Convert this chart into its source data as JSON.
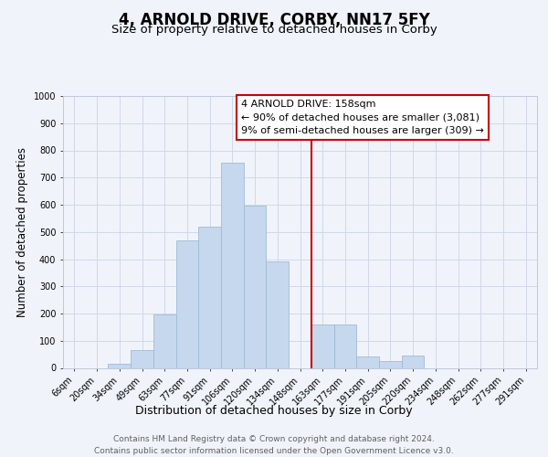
{
  "title": "4, ARNOLD DRIVE, CORBY, NN17 5FY",
  "subtitle": "Size of property relative to detached houses in Corby",
  "xlabel": "Distribution of detached houses by size in Corby",
  "ylabel": "Number of detached properties",
  "bar_labels": [
    "6sqm",
    "20sqm",
    "34sqm",
    "49sqm",
    "63sqm",
    "77sqm",
    "91sqm",
    "106sqm",
    "120sqm",
    "134sqm",
    "148sqm",
    "163sqm",
    "177sqm",
    "191sqm",
    "205sqm",
    "220sqm",
    "234sqm",
    "248sqm",
    "262sqm",
    "277sqm",
    "291sqm"
  ],
  "bar_values": [
    0,
    0,
    15,
    65,
    197,
    470,
    520,
    755,
    595,
    390,
    0,
    160,
    160,
    42,
    25,
    45,
    0,
    0,
    0,
    0,
    0
  ],
  "bar_color": "#c5d8ed",
  "bar_edge_color": "#a0bcd8",
  "ylim": [
    0,
    1000
  ],
  "yticks": [
    0,
    100,
    200,
    300,
    400,
    500,
    600,
    700,
    800,
    900,
    1000
  ],
  "vline_x": 10.5,
  "vline_color": "#cc0000",
  "annotation_title": "4 ARNOLD DRIVE: 158sqm",
  "annotation_line1": "← 90% of detached houses are smaller (3,081)",
  "annotation_line2": "9% of semi-detached houses are larger (309) →",
  "annotation_box_facecolor": "#ffffff",
  "annotation_box_edgecolor": "#cc0000",
  "footer_line1": "Contains HM Land Registry data © Crown copyright and database right 2024.",
  "footer_line2": "Contains public sector information licensed under the Open Government Licence v3.0.",
  "title_fontsize": 12,
  "subtitle_fontsize": 9.5,
  "xlabel_fontsize": 9,
  "ylabel_fontsize": 8.5,
  "annotation_fontsize": 8,
  "tick_fontsize": 7,
  "footer_fontsize": 6.5,
  "background_color": "#f0f4fa",
  "grid_color": "#d0d8e8"
}
